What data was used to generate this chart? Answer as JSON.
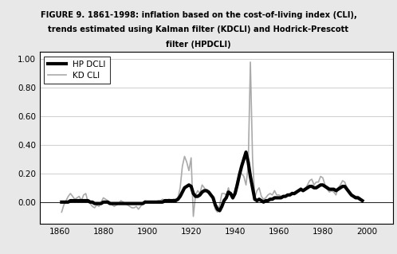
{
  "title_line1": "FIGURE 9. 1861-1998: inflation based on the cost-of-living index (CLI),",
  "title_line2": "trends estimated using Kalman filter (KDCLI) and Hodrick-Prescott",
  "title_line3": "filter (HPDCLI)",
  "xlim": [
    1851,
    2012
  ],
  "ylim": [
    -0.15,
    1.05
  ],
  "yticks": [
    0.0,
    0.2,
    0.4,
    0.6,
    0.8,
    1.0
  ],
  "xticks": [
    1860,
    1880,
    1900,
    1920,
    1940,
    1960,
    1980,
    2000
  ],
  "legend_labels": [
    "HP DCLI",
    "KD CLI"
  ],
  "header_color": "#d8d8d8",
  "plot_bg": "#ffffff",
  "outer_bg": "#e8e8e8",
  "hp_color": "#000000",
  "kd_color": "#aaaaaa",
  "hp_linewidth": 3.0,
  "kd_linewidth": 1.2,
  "years": [
    1861,
    1862,
    1863,
    1864,
    1865,
    1866,
    1867,
    1868,
    1869,
    1870,
    1871,
    1872,
    1873,
    1874,
    1875,
    1876,
    1877,
    1878,
    1879,
    1880,
    1881,
    1882,
    1883,
    1884,
    1885,
    1886,
    1887,
    1888,
    1889,
    1890,
    1891,
    1892,
    1893,
    1894,
    1895,
    1896,
    1897,
    1898,
    1899,
    1900,
    1901,
    1902,
    1903,
    1904,
    1905,
    1906,
    1907,
    1908,
    1909,
    1910,
    1911,
    1912,
    1913,
    1914,
    1915,
    1916,
    1917,
    1918,
    1919,
    1920,
    1921,
    1922,
    1923,
    1924,
    1925,
    1926,
    1927,
    1928,
    1929,
    1930,
    1931,
    1932,
    1933,
    1934,
    1935,
    1936,
    1937,
    1938,
    1939,
    1940,
    1941,
    1942,
    1943,
    1944,
    1945,
    1946,
    1947,
    1948,
    1949,
    1950,
    1951,
    1952,
    1953,
    1954,
    1955,
    1956,
    1957,
    1958,
    1959,
    1960,
    1961,
    1962,
    1963,
    1964,
    1965,
    1966,
    1967,
    1968,
    1969,
    1970,
    1971,
    1972,
    1973,
    1974,
    1975,
    1976,
    1977,
    1978,
    1979,
    1980,
    1981,
    1982,
    1983,
    1984,
    1985,
    1986,
    1987,
    1988,
    1989,
    1990,
    1991,
    1992,
    1993,
    1994,
    1995,
    1996,
    1997,
    1998
  ],
  "kd_cli": [
    -0.07,
    -0.02,
    0.01,
    0.04,
    0.06,
    0.04,
    0.02,
    0.03,
    0.04,
    0.01,
    0.05,
    0.06,
    0.0,
    -0.01,
    -0.03,
    -0.04,
    -0.02,
    -0.03,
    0.0,
    0.03,
    0.02,
    0.01,
    0.0,
    -0.02,
    -0.03,
    -0.02,
    -0.01,
    0.01,
    0.0,
    -0.01,
    -0.02,
    -0.03,
    -0.04,
    -0.04,
    -0.03,
    -0.05,
    -0.03,
    -0.01,
    0.01,
    0.0,
    0.0,
    0.0,
    0.0,
    0.0,
    0.01,
    0.01,
    0.02,
    0.01,
    0.01,
    0.02,
    0.01,
    0.02,
    0.02,
    0.03,
    0.1,
    0.25,
    0.32,
    0.28,
    0.22,
    0.31,
    -0.1,
    0.05,
    0.08,
    0.06,
    0.12,
    0.1,
    0.08,
    0.06,
    0.04,
    0.04,
    -0.05,
    -0.07,
    -0.02,
    0.06,
    0.06,
    0.05,
    0.1,
    0.04,
    0.02,
    0.08,
    0.15,
    0.2,
    0.2,
    0.18,
    0.12,
    0.25,
    0.98,
    0.3,
    0.03,
    0.08,
    0.1,
    0.04,
    0.02,
    0.03,
    0.05,
    0.06,
    0.05,
    0.08,
    0.05,
    0.05,
    0.04,
    0.04,
    0.04,
    0.05,
    0.05,
    0.07,
    0.05,
    0.06,
    0.08,
    0.1,
    0.08,
    0.09,
    0.12,
    0.15,
    0.16,
    0.12,
    0.14,
    0.14,
    0.18,
    0.17,
    0.12,
    0.09,
    0.07,
    0.08,
    0.07,
    0.05,
    0.1,
    0.12,
    0.15,
    0.14,
    0.1,
    0.06,
    0.05,
    0.04,
    0.04,
    0.04,
    0.03,
    0.01
  ],
  "hp_dcli": [
    0.0,
    0.0,
    0.0,
    0.0,
    0.01,
    0.01,
    0.01,
    0.01,
    0.01,
    0.01,
    0.01,
    0.01,
    0.01,
    0.0,
    0.0,
    -0.01,
    -0.01,
    -0.01,
    -0.01,
    0.0,
    0.0,
    0.0,
    -0.01,
    -0.01,
    -0.01,
    -0.01,
    -0.01,
    -0.01,
    -0.01,
    -0.01,
    -0.01,
    -0.01,
    -0.01,
    -0.01,
    -0.01,
    -0.01,
    -0.01,
    -0.01,
    0.0,
    0.0,
    0.0,
    0.0,
    0.0,
    0.0,
    0.0,
    0.0,
    0.0,
    0.01,
    0.01,
    0.01,
    0.01,
    0.01,
    0.01,
    0.02,
    0.04,
    0.07,
    0.1,
    0.11,
    0.12,
    0.11,
    0.06,
    0.04,
    0.04,
    0.05,
    0.07,
    0.08,
    0.08,
    0.07,
    0.05,
    0.03,
    -0.02,
    -0.05,
    -0.06,
    -0.03,
    0.01,
    0.03,
    0.07,
    0.06,
    0.03,
    0.06,
    0.12,
    0.19,
    0.25,
    0.3,
    0.35,
    0.28,
    0.18,
    0.1,
    0.02,
    0.01,
    0.02,
    0.01,
    0.0,
    0.01,
    0.01,
    0.02,
    0.02,
    0.03,
    0.03,
    0.03,
    0.03,
    0.04,
    0.04,
    0.05,
    0.05,
    0.06,
    0.06,
    0.07,
    0.08,
    0.09,
    0.08,
    0.09,
    0.1,
    0.11,
    0.11,
    0.1,
    0.1,
    0.11,
    0.12,
    0.12,
    0.11,
    0.1,
    0.09,
    0.09,
    0.09,
    0.08,
    0.09,
    0.1,
    0.11,
    0.11,
    0.09,
    0.07,
    0.05,
    0.04,
    0.03,
    0.03,
    0.02,
    0.01
  ]
}
